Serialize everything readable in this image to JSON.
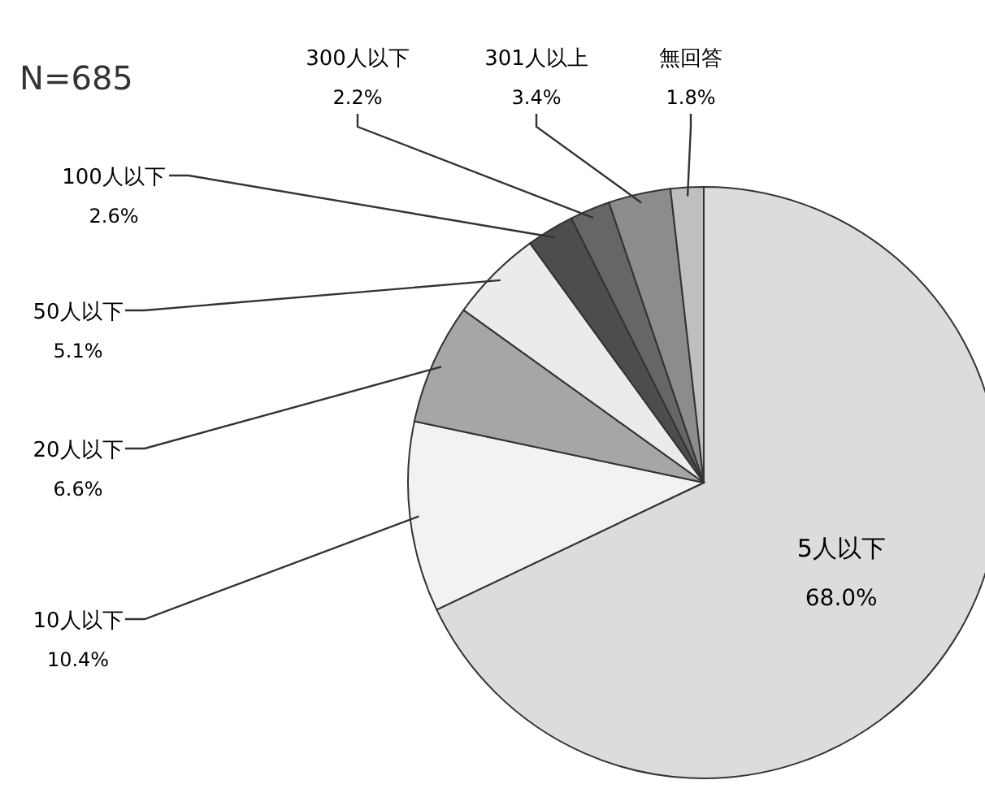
{
  "chart_data": {
    "type": "pie",
    "annotations": [
      "N=685"
    ],
    "categories": [
      "5人以下",
      "10人以下",
      "20人以下",
      "50人以下",
      "100人以下",
      "300人以下",
      "301人以上",
      "無回答"
    ],
    "values": [
      68.0,
      10.4,
      6.6,
      5.1,
      2.6,
      2.2,
      3.4,
      1.8
    ],
    "colors": [
      "#dcdcdc",
      "#f2f2f2",
      "#a6a6a6",
      "#ebebeb",
      "#4d4d4d",
      "#666666",
      "#8c8c8c",
      "#bfbfbf"
    ],
    "value_labels": [
      "68.0%",
      "10.4%",
      "6.6%",
      "5.1%",
      "2.6%",
      "2.2%",
      "3.4%",
      "1.8%"
    ]
  }
}
